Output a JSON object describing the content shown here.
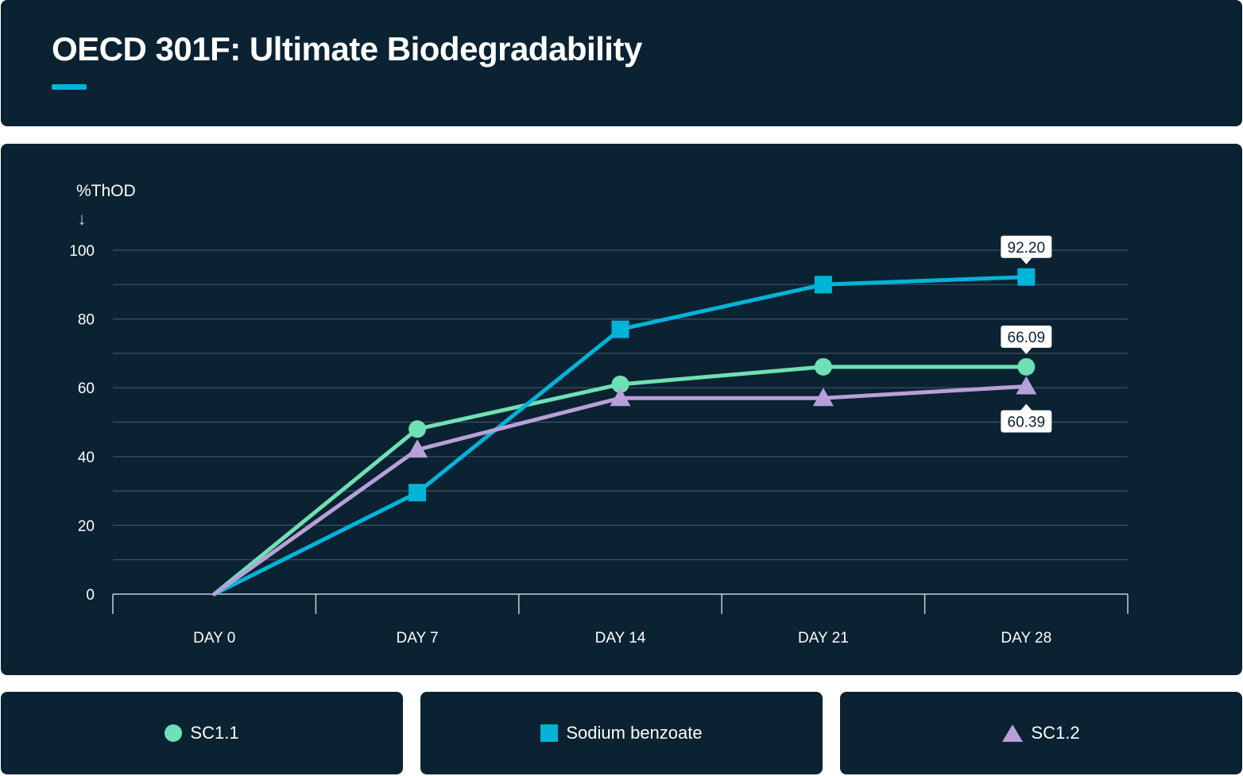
{
  "header": {
    "title": "OECD 301F: Ultimate Biodegradability"
  },
  "colors": {
    "background": "#0a2232",
    "accent": "#00b4d8",
    "sc1_1": "#6fe0b4",
    "sodium_benzoate": "#00b4d8",
    "sc1_2": "#b7a0d8",
    "grid": "#3c5462",
    "axis": "#c8d0d4",
    "text": "#ffffff"
  },
  "chart_data": {
    "type": "line",
    "title": "OECD 301F: Ultimate Biodegradability",
    "ylabel": "%ThOD",
    "ylabel_arrow": "↓",
    "xlabel": "",
    "categories": [
      "DAY 0",
      "DAY 7",
      "DAY 14",
      "DAY 21",
      "DAY 28"
    ],
    "ylim": [
      0,
      100
    ],
    "yticks": [
      0,
      20,
      40,
      60,
      80,
      100
    ],
    "grid": true,
    "legend_position": "bottom",
    "series": [
      {
        "name": "SC1.1",
        "marker": "circle",
        "color": "#6fe0b4",
        "values": [
          0,
          48,
          61,
          66.09,
          66.09
        ],
        "end_label": "66.09"
      },
      {
        "name": "Sodium benzoate",
        "marker": "square",
        "color": "#00b4d8",
        "values": [
          0,
          29.5,
          77,
          90,
          92.2
        ],
        "end_label": "92.20"
      },
      {
        "name": "SC1.2",
        "marker": "triangle",
        "color": "#b7a0d8",
        "values": [
          0,
          42,
          57,
          57,
          60.39
        ],
        "end_label": "60.39"
      }
    ]
  },
  "legend": {
    "items": [
      "SC1.1",
      "Sodium benzoate",
      "SC1.2"
    ]
  }
}
